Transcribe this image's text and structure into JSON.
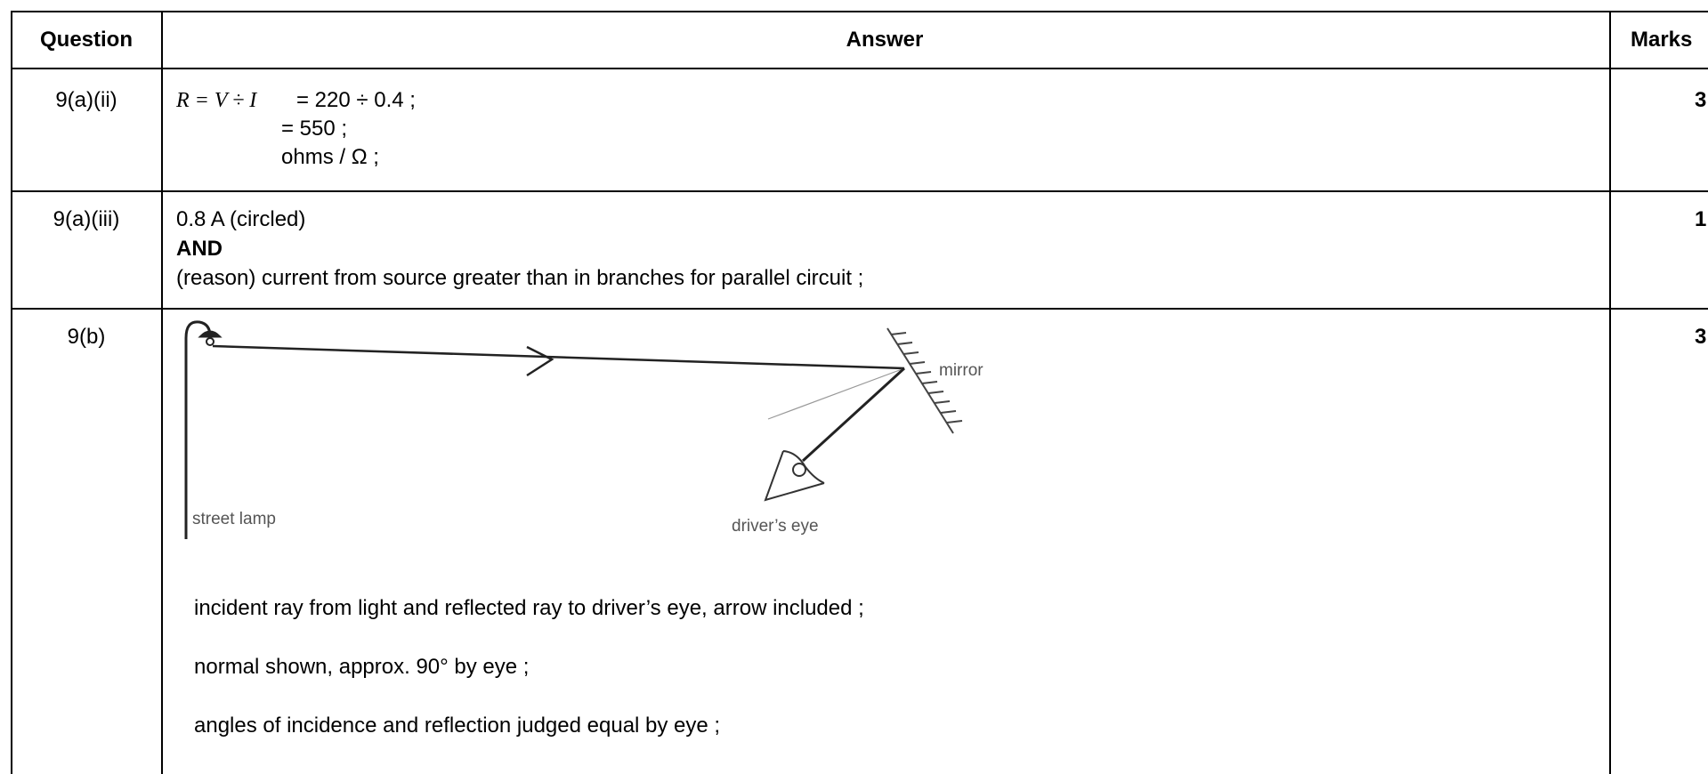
{
  "header": {
    "question": "Question",
    "answer": "Answer",
    "marks": "Marks"
  },
  "rows": [
    {
      "question": "9(a)(ii)",
      "answer": {
        "formula": "R = V ÷ I",
        "lines": [
          "= 220 ÷ 0.4 ;",
          "= 550 ;",
          "ohms / Ω ;"
        ]
      },
      "marks": "3"
    },
    {
      "question": "9(a)(iii)",
      "answer": {
        "lines": [
          "0.8 A (circled)",
          "AND",
          "(reason) current from source greater than in branches for parallel circuit ;"
        ]
      },
      "marks": "1"
    },
    {
      "question": "9(b)",
      "answer": {
        "diagram": {
          "street_lamp": "street lamp",
          "mirror": "mirror",
          "drivers_eye": "driver’s eye"
        },
        "lines": [
          "incident ray from light and reflected ray to driver’s eye, arrow included ;",
          "normal shown, approx. 90° by eye ;",
          "angles of incidence and reflection judged equal by eye ;"
        ]
      },
      "marks": "3"
    }
  ]
}
